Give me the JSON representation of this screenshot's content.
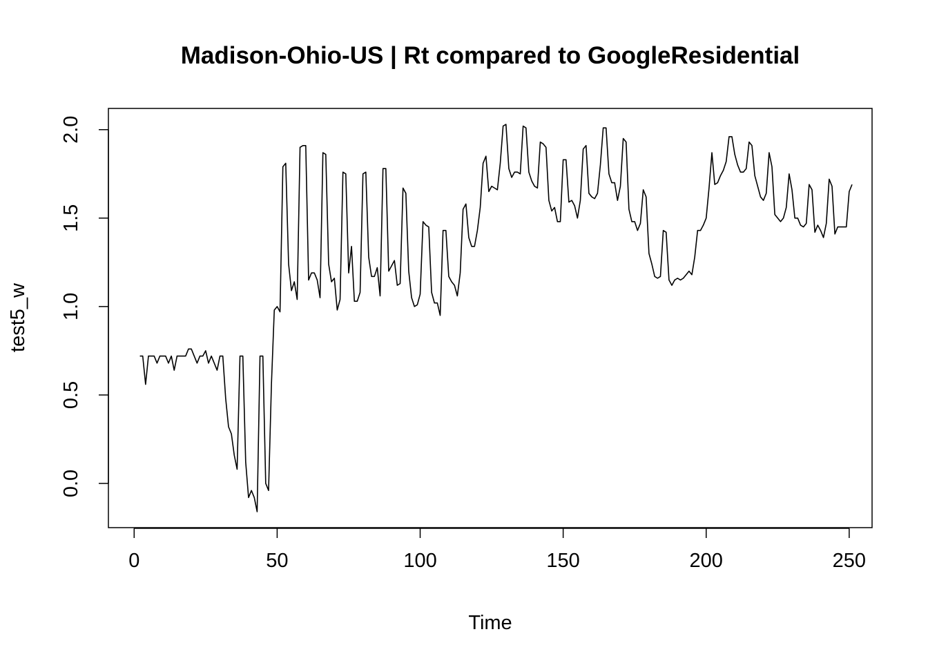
{
  "chart_data": {
    "type": "line",
    "title": "Madison-Ohio-US | Rt compared to GoogleResidential",
    "xlabel": "Time",
    "ylabel": "test5_w",
    "xlim": [
      -9,
      258
    ],
    "ylim": [
      -0.25,
      2.12
    ],
    "xticks": [
      0,
      50,
      100,
      150,
      200,
      250
    ],
    "yticks": [
      0.0,
      0.5,
      1.0,
      1.5,
      2.0
    ],
    "xtick_labels": [
      "0",
      "50",
      "100",
      "150",
      "200",
      "250"
    ],
    "ytick_labels": [
      "0.0",
      "0.5",
      "1.0",
      "1.5",
      "2.0"
    ],
    "grid": false,
    "legend": "none",
    "series": [
      {
        "color": "#000000",
        "x_start": 2,
        "values": [
          0.72,
          0.72,
          0.56,
          0.72,
          0.72,
          0.72,
          0.68,
          0.72,
          0.72,
          0.72,
          0.68,
          0.72,
          0.64,
          0.72,
          0.72,
          0.72,
          0.72,
          0.76,
          0.76,
          0.72,
          0.68,
          0.72,
          0.72,
          0.75,
          0.68,
          0.72,
          0.68,
          0.64,
          0.72,
          0.72,
          0.48,
          0.32,
          0.28,
          0.16,
          0.08,
          0.72,
          0.72,
          0.12,
          -0.08,
          -0.04,
          -0.08,
          -0.16,
          0.72,
          0.72,
          0.0,
          -0.04,
          0.56,
          0.98,
          1.0,
          0.97,
          1.79,
          1.81,
          1.24,
          1.09,
          1.14,
          1.04,
          1.9,
          1.91,
          1.91,
          1.15,
          1.19,
          1.19,
          1.15,
          1.05,
          1.87,
          1.86,
          1.24,
          1.14,
          1.16,
          0.98,
          1.04,
          1.76,
          1.75,
          1.19,
          1.34,
          1.03,
          1.03,
          1.08,
          1.75,
          1.76,
          1.28,
          1.17,
          1.17,
          1.22,
          1.06,
          1.78,
          1.78,
          1.2,
          1.23,
          1.26,
          1.12,
          1.13,
          1.67,
          1.64,
          1.2,
          1.05,
          1.0,
          1.01,
          1.07,
          1.48,
          1.46,
          1.45,
          1.08,
          1.02,
          1.02,
          0.95,
          1.43,
          1.43,
          1.17,
          1.14,
          1.12,
          1.06,
          1.19,
          1.55,
          1.58,
          1.39,
          1.34,
          1.34,
          1.43,
          1.56,
          1.81,
          1.85,
          1.65,
          1.68,
          1.67,
          1.66,
          1.81,
          2.02,
          2.03,
          1.78,
          1.73,
          1.76,
          1.76,
          1.75,
          2.02,
          2.01,
          1.76,
          1.71,
          1.68,
          1.67,
          1.93,
          1.92,
          1.9,
          1.6,
          1.54,
          1.56,
          1.48,
          1.48,
          1.83,
          1.83,
          1.59,
          1.6,
          1.57,
          1.5,
          1.6,
          1.89,
          1.91,
          1.64,
          1.62,
          1.61,
          1.64,
          1.8,
          2.01,
          2.01,
          1.75,
          1.7,
          1.7,
          1.6,
          1.68,
          1.95,
          1.93,
          1.55,
          1.48,
          1.48,
          1.43,
          1.47,
          1.66,
          1.62,
          1.3,
          1.24,
          1.17,
          1.16,
          1.17,
          1.43,
          1.42,
          1.15,
          1.12,
          1.15,
          1.16,
          1.15,
          1.16,
          1.18,
          1.2,
          1.18,
          1.28,
          1.43,
          1.43,
          1.46,
          1.5,
          1.67,
          1.87,
          1.69,
          1.7,
          1.74,
          1.77,
          1.82,
          1.96,
          1.96,
          1.86,
          1.8,
          1.76,
          1.76,
          1.78,
          1.93,
          1.91,
          1.74,
          1.68,
          1.62,
          1.6,
          1.64,
          1.87,
          1.79,
          1.52,
          1.5,
          1.48,
          1.5,
          1.56,
          1.75,
          1.66,
          1.5,
          1.5,
          1.46,
          1.45,
          1.47,
          1.69,
          1.66,
          1.42,
          1.46,
          1.43,
          1.39,
          1.47,
          1.72,
          1.68,
          1.41,
          1.45,
          1.45,
          1.45,
          1.45,
          1.65,
          1.69
        ]
      }
    ]
  }
}
